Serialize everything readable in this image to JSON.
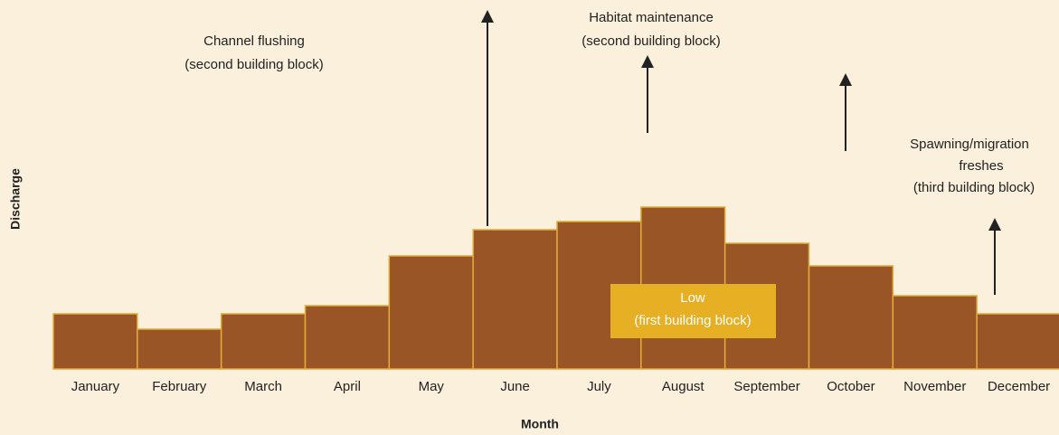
{
  "chart_data": {
    "type": "bar",
    "x_label": "Month",
    "y_label": "Discharge",
    "categories": [
      "January",
      "February",
      "March",
      "April",
      "May",
      "June",
      "July",
      "August",
      "September",
      "October",
      "November",
      "December"
    ],
    "values": [
      61,
      44,
      61,
      70,
      125,
      154,
      163,
      179,
      139,
      114,
      81,
      61
    ],
    "color": "#9a5526",
    "edge_color": "#e0ac3a",
    "ylim": [
      0,
      200
    ],
    "annotations": [
      {
        "lines": [
          "Channel flushing",
          "(second building block)"
        ]
      },
      {
        "lines": [
          "Habitat maintenance",
          "(second building block)"
        ]
      },
      {
        "lines": [
          "Spawning/migration",
          "freshes",
          "(third building block)"
        ]
      },
      {
        "lines": [
          "Low",
          "(first building block)"
        ]
      }
    ]
  }
}
